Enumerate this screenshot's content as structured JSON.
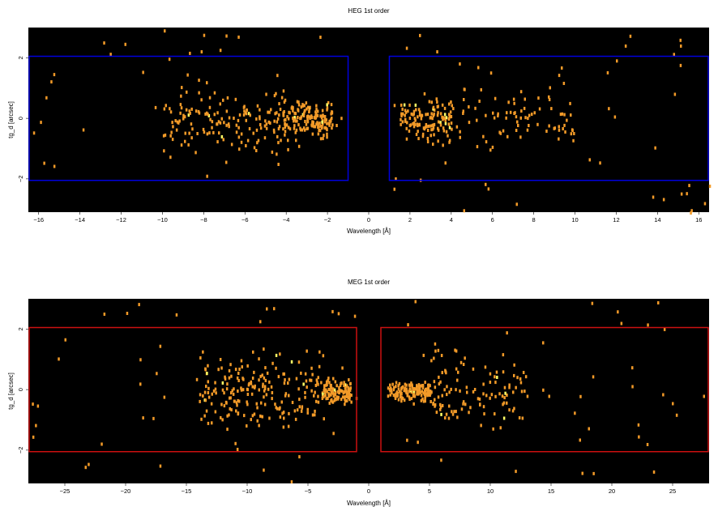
{
  "colors": {
    "background": "#000000",
    "event_faint": "#f29a28",
    "event_bright": "#ffff66",
    "heg_region": "#0000dd",
    "meg_region": "#cc1111"
  },
  "chart_data": [
    {
      "type": "heatmap",
      "title": "HEG 1st order",
      "xlabel": "Wavelength [Å]",
      "ylabel": "tg_d [arcsec]",
      "xlim": [
        -16.5,
        16.5
      ],
      "ylim": [
        -3.1,
        3.0
      ],
      "xticks": [
        -16,
        -14,
        -12,
        -10,
        -8,
        -6,
        -4,
        -2,
        0,
        2,
        4,
        6,
        8,
        10,
        12,
        14,
        16
      ],
      "xtick_labels": [
        "−16",
        "−14",
        "−12",
        "−10",
        "−8",
        "−6",
        "−4",
        "−2",
        "0",
        "2",
        "4",
        "6",
        "8",
        "10",
        "12",
        "14",
        "16"
      ],
      "yticks": [
        -2,
        0,
        2
      ],
      "ytick_labels": [
        "−2",
        "0",
        "2"
      ],
      "regions": [
        {
          "x": [
            -16.5,
            -1.0
          ],
          "y": [
            -2.05,
            2.05
          ],
          "color": "#0000dd"
        },
        {
          "x": [
            1.0,
            16.5
          ],
          "y": [
            -2.05,
            2.05
          ],
          "color": "#0000dd"
        }
      ],
      "event_density": {
        "description_free": true,
        "clusters": [
          {
            "x": [
              -4.2,
              -1.8
            ],
            "y": [
              -0.9,
              0.9
            ],
            "weight": 0.3
          },
          {
            "x": [
              -10.0,
              -4.0
            ],
            "y": [
              -1.5,
              1.5
            ],
            "weight": 0.3
          },
          {
            "x": [
              1.5,
              4.0
            ],
            "y": [
              -1.0,
              1.0
            ],
            "weight": 0.25
          },
          {
            "x": [
              4.0,
              10.0
            ],
            "y": [
              -1.4,
              1.4
            ],
            "weight": 0.15
          }
        ],
        "count": 520
      }
    },
    {
      "type": "heatmap",
      "title": "MEG 1st order",
      "xlabel": "Wavelength [Å]",
      "ylabel": "tg_d [arcsec]",
      "xlim": [
        -28,
        28
      ],
      "ylim": [
        -3.1,
        3.0
      ],
      "xticks": [
        -25,
        -20,
        -15,
        -10,
        -5,
        0,
        5,
        10,
        15,
        20,
        25
      ],
      "xtick_labels": [
        "−25",
        "−20",
        "−15",
        "−10",
        "−5",
        "0",
        "5",
        "10",
        "15",
        "20",
        "25"
      ],
      "yticks": [
        -2,
        0,
        2
      ],
      "ytick_labels": [
        "−2",
        "0",
        "2"
      ],
      "regions": [
        {
          "x": [
            -28,
            -1.0
          ],
          "y": [
            -2.05,
            2.05
          ],
          "color": "#cc1111"
        },
        {
          "x": [
            1.0,
            28
          ],
          "y": [
            -2.05,
            2.05
          ],
          "color": "#cc1111"
        }
      ],
      "event_density": {
        "clusters": [
          {
            "x": [
              -4.0,
              -1.5
            ],
            "y": [
              -0.6,
              0.6
            ],
            "weight": 0.2
          },
          {
            "x": [
              -14.0,
              -4.0
            ],
            "y": [
              -1.6,
              1.6
            ],
            "weight": 0.35
          },
          {
            "x": [
              1.5,
              5.0
            ],
            "y": [
              -0.5,
              0.5
            ],
            "weight": 0.25
          },
          {
            "x": [
              5.0,
              13.0
            ],
            "y": [
              -1.8,
              1.8
            ],
            "weight": 0.2
          }
        ],
        "count": 560
      }
    }
  ]
}
